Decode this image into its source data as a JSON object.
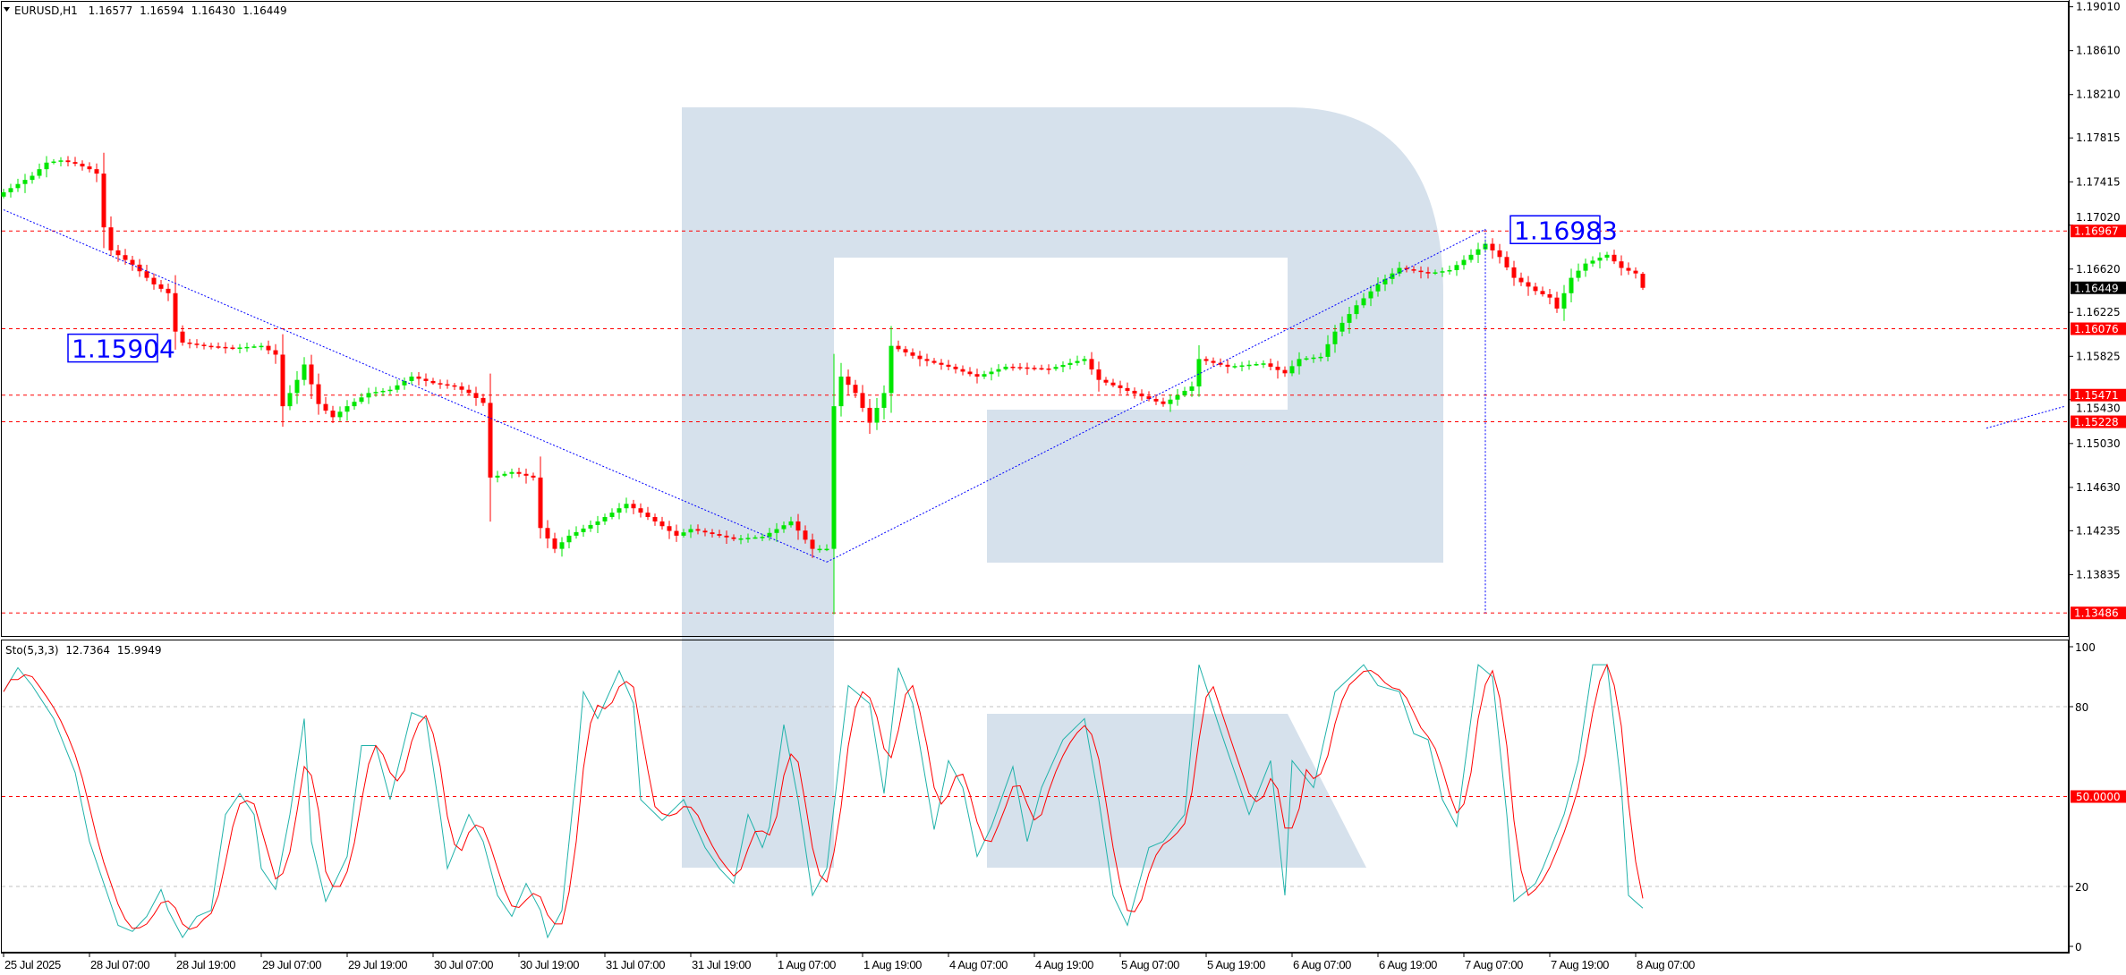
{
  "header": {
    "symbol": "EURUSD,H1",
    "open": "1.16577",
    "high": "1.16594",
    "low": "1.16430",
    "close": "1.16449"
  },
  "colors": {
    "bull": "#00e600",
    "bear": "#ff0000",
    "level_line": "#ff0000",
    "trendline": "#0000ff",
    "current_price_badge": "#000000",
    "watermark": "#d6e1ec",
    "stoch_main": "#20b2aa",
    "stoch_signal": "#ff0000"
  },
  "chart_data": {
    "type": "candlestick",
    "symbol": "EURUSD",
    "timeframe": "H1",
    "ylim": [
      1.1341,
      1.1906
    ],
    "grid": false,
    "y_ticks": [
      "1.19010",
      "1.18610",
      "1.18210",
      "1.17815",
      "1.17415",
      "1.17020",
      "1.16620",
      "1.16225",
      "1.15825",
      "1.15430",
      "1.15030",
      "1.14630",
      "1.14235",
      "1.13835"
    ],
    "x_ticks": [
      "25 Jul 2025",
      "28 Jul 07:00",
      "28 Jul 19:00",
      "29 Jul 07:00",
      "29 Jul 19:00",
      "30 Jul 07:00",
      "30 Jul 19:00",
      "31 Jul 07:00",
      "31 Jul 19:00",
      "1 Aug 07:00",
      "1 Aug 19:00",
      "4 Aug 07:00",
      "4 Aug 19:00",
      "5 Aug 07:00",
      "5 Aug 19:00",
      "6 Aug 07:00",
      "6 Aug 19:00",
      "7 Aug 07:00",
      "7 Aug 19:00",
      "8 Aug 07:00"
    ],
    "current_price": "1.16449",
    "last_bar": {
      "time": "8 Aug 08",
      "open": 1.16577,
      "high": 1.16594,
      "low": 1.1643,
      "close": 1.16449
    },
    "close_points": [
      [
        "25 Jul 19",
        1.1732
      ],
      [
        "25 Jul 23",
        1.1747
      ],
      [
        "28 Jul 01",
        1.1759
      ],
      [
        "28 Jul 03",
        1.1761
      ],
      [
        "28 Jul 05",
        1.1758
      ],
      [
        "28 Jul 07",
        1.1753
      ],
      [
        "28 Jul 08",
        1.1749
      ],
      [
        "28 Jul 09",
        1.17
      ],
      [
        "28 Jul 10",
        1.1679
      ],
      [
        "28 Jul 13",
        1.1666
      ],
      [
        "28 Jul 16",
        1.1648
      ],
      [
        "28 Jul 18",
        1.164
      ],
      [
        "28 Jul 19",
        1.1605
      ],
      [
        "28 Jul 20",
        1.1595
      ],
      [
        "28 Jul 23",
        1.1592
      ],
      [
        "29 Jul 03",
        1.159
      ],
      [
        "29 Jul 07",
        1.1592
      ],
      [
        "29 Jul 09",
        1.1584
      ],
      [
        "29 Jul 10",
        1.1537
      ],
      [
        "29 Jul 12",
        1.1561
      ],
      [
        "29 Jul 13",
        1.1575
      ],
      [
        "29 Jul 15",
        1.1539
      ],
      [
        "29 Jul 17",
        1.1527
      ],
      [
        "29 Jul 19",
        1.1537
      ],
      [
        "29 Jul 22",
        1.1549
      ],
      [
        "30 Jul 01",
        1.1552
      ],
      [
        "30 Jul 04",
        1.1564
      ],
      [
        "30 Jul 07",
        1.1558
      ],
      [
        "30 Jul 10",
        1.1555
      ],
      [
        "30 Jul 12",
        1.1549
      ],
      [
        "30 Jul 14",
        1.154
      ],
      [
        "30 Jul 15",
        1.1472
      ],
      [
        "30 Jul 18",
        1.1477
      ],
      [
        "30 Jul 21",
        1.1472
      ],
      [
        "30 Jul 22",
        1.1426
      ],
      [
        "31 Jul 00",
        1.1407
      ],
      [
        "31 Jul 02",
        1.1419
      ],
      [
        "31 Jul 06",
        1.1432
      ],
      [
        "31 Jul 10",
        1.1448
      ],
      [
        "31 Jul 12",
        1.144
      ],
      [
        "31 Jul 14",
        1.1432
      ],
      [
        "31 Jul 17",
        1.1419
      ],
      [
        "31 Jul 19",
        1.1425
      ],
      [
        "1 Aug 01",
        1.1416
      ],
      [
        "1 Aug 05",
        1.1418
      ],
      [
        "1 Aug 09",
        1.1432
      ],
      [
        "1 Aug 12",
        1.1407
      ],
      [
        "1 Aug 14",
        1.1407
      ],
      [
        "1 Aug 15",
        1.1537
      ],
      [
        "1 Aug 16",
        1.1564
      ],
      [
        "1 Aug 18",
        1.1549
      ],
      [
        "1 Aug 20",
        1.1522
      ],
      [
        "1 Aug 22",
        1.1549
      ],
      [
        "1 Aug 23",
        1.1592
      ],
      [
        "4 Aug 03",
        1.158
      ],
      [
        "4 Aug 07",
        1.1573
      ],
      [
        "4 Aug 11",
        1.1564
      ],
      [
        "4 Aug 15",
        1.1573
      ],
      [
        "4 Aug 21",
        1.1571
      ],
      [
        "5 Aug 02",
        1.158
      ],
      [
        "5 Aug 04",
        1.1561
      ],
      [
        "5 Aug 10",
        1.1546
      ],
      [
        "5 Aug 13",
        1.1539
      ],
      [
        "5 Aug 17",
        1.1555
      ],
      [
        "5 Aug 18",
        1.158
      ],
      [
        "5 Aug 22",
        1.1573
      ],
      [
        "6 Aug 03",
        1.1576
      ],
      [
        "6 Aug 06",
        1.1567
      ],
      [
        "6 Aug 08",
        1.158
      ],
      [
        "6 Aug 11",
        1.1582
      ],
      [
        "6 Aug 13",
        1.1605
      ],
      [
        "6 Aug 16",
        1.1629
      ],
      [
        "6 Aug 19",
        1.1648
      ],
      [
        "6 Aug 22",
        1.1663
      ],
      [
        "7 Aug 02",
        1.1658
      ],
      [
        "7 Aug 05",
        1.1661
      ],
      [
        "7 Aug 08",
        1.1675
      ],
      [
        "7 Aug 10",
        1.1685
      ],
      [
        "7 Aug 12",
        1.1673
      ],
      [
        "7 Aug 14",
        1.1654
      ],
      [
        "7 Aug 17",
        1.1642
      ],
      [
        "7 Aug 19",
        1.1636
      ],
      [
        "7 Aug 20",
        1.1626
      ],
      [
        "7 Aug 22",
        1.1654
      ],
      [
        "8 Aug 00",
        1.1667
      ],
      [
        "8 Aug 03",
        1.1675
      ],
      [
        "8 Aug 05",
        1.1663
      ],
      [
        "8 Aug 07",
        1.1658
      ],
      [
        "8 Aug 08",
        1.16449
      ]
    ],
    "levels": [
      {
        "price": 1.16967,
        "label": "1.16967"
      },
      {
        "price": 1.16076,
        "label": "1.16076"
      },
      {
        "price": 1.15471,
        "label": "1.15471"
      },
      {
        "price": 1.15228,
        "label": "1.15228"
      },
      {
        "price": 1.13486,
        "label": "1.13486"
      }
    ],
    "trendlines": [
      {
        "from": [
          "25 Jul 19",
          1.1716
        ],
        "to": [
          "1 Aug 14",
          1.1395
        ]
      },
      {
        "from": [
          "1 Aug 14",
          1.1395
        ],
        "to": [
          "7 Aug 10",
          1.16983
        ]
      },
      {
        "from": [
          "7 Aug 10",
          1.16983
        ],
        "to": [
          "7 Aug 10",
          1.13486
        ]
      },
      {
        "from": [
          "12 Aug 08",
          1.1517
        ],
        "to": [
          "12 Aug 19",
          1.1537
        ]
      }
    ],
    "price_labels": [
      {
        "text": "1.15904",
        "time": "28 Jul 19",
        "price": 1.15904
      },
      {
        "text": "1.16983",
        "time": "7 Aug 10",
        "price": 1.16983
      }
    ],
    "stochastic": {
      "title": "Sto(5,3,3)",
      "main_value": "12.7364",
      "signal_value": "15.9949",
      "ylim": [
        0,
        100
      ],
      "y_ticks": [
        "100",
        "80",
        "20",
        "0"
      ],
      "level_badge": "50.0000",
      "levels": [
        80,
        50,
        20
      ],
      "main_points": [
        [
          "25 Jul 19",
          85
        ],
        [
          "25 Jul 21",
          93
        ],
        [
          "25 Jul 23",
          87
        ],
        [
          "28 Jul 02",
          76
        ],
        [
          "28 Jul 05",
          58
        ],
        [
          "28 Jul 07",
          35
        ],
        [
          "28 Jul 09",
          21
        ],
        [
          "28 Jul 11",
          7
        ],
        [
          "28 Jul 13",
          5
        ],
        [
          "28 Jul 15",
          10
        ],
        [
          "28 Jul 17",
          19
        ],
        [
          "28 Jul 18",
          12
        ],
        [
          "28 Jul 20",
          3
        ],
        [
          "28 Jul 22",
          10
        ],
        [
          "29 Jul 00",
          12
        ],
        [
          "29 Jul 02",
          44
        ],
        [
          "29 Jul 04",
          51
        ],
        [
          "29 Jul 06",
          44
        ],
        [
          "29 Jul 07",
          26
        ],
        [
          "29 Jul 09",
          19
        ],
        [
          "29 Jul 11",
          44
        ],
        [
          "29 Jul 13",
          76
        ],
        [
          "29 Jul 14",
          35
        ],
        [
          "29 Jul 16",
          15
        ],
        [
          "29 Jul 19",
          30
        ],
        [
          "29 Jul 21",
          67
        ],
        [
          "29 Jul 23",
          67
        ],
        [
          "30 Jul 01",
          49
        ],
        [
          "30 Jul 04",
          78
        ],
        [
          "30 Jul 06",
          76
        ],
        [
          "30 Jul 08",
          44
        ],
        [
          "30 Jul 09",
          26
        ],
        [
          "30 Jul 12",
          44
        ],
        [
          "30 Jul 14",
          35
        ],
        [
          "30 Jul 16",
          17
        ],
        [
          "30 Jul 18",
          10
        ],
        [
          "30 Jul 20",
          21
        ],
        [
          "30 Jul 22",
          12
        ],
        [
          "30 Jul 23",
          3
        ],
        [
          "31 Jul 01",
          12
        ],
        [
          "31 Jul 03",
          58
        ],
        [
          "31 Jul 04",
          85
        ],
        [
          "31 Jul 06",
          76
        ],
        [
          "31 Jul 09",
          92
        ],
        [
          "31 Jul 11",
          81
        ],
        [
          "31 Jul 12",
          49
        ],
        [
          "31 Jul 15",
          42
        ],
        [
          "31 Jul 18",
          49
        ],
        [
          "31 Jul 21",
          33
        ],
        [
          "31 Jul 23",
          26
        ],
        [
          "1 Aug 01",
          21
        ],
        [
          "1 Aug 03",
          44
        ],
        [
          "1 Aug 05",
          33
        ],
        [
          "1 Aug 06",
          40
        ],
        [
          "1 Aug 08",
          74
        ],
        [
          "1 Aug 10",
          49
        ],
        [
          "1 Aug 12",
          17
        ],
        [
          "1 Aug 14",
          26
        ],
        [
          "1 Aug 16",
          67
        ],
        [
          "1 Aug 17",
          87
        ],
        [
          "1 Aug 20",
          81
        ],
        [
          "1 Aug 22",
          51
        ],
        [
          "4 Aug 00",
          93
        ],
        [
          "4 Aug 02",
          81
        ],
        [
          "4 Aug 05",
          39
        ],
        [
          "4 Aug 07",
          62
        ],
        [
          "4 Aug 09",
          53
        ],
        [
          "4 Aug 11",
          30
        ],
        [
          "4 Aug 13",
          40
        ],
        [
          "4 Aug 16",
          60
        ],
        [
          "4 Aug 18",
          35
        ],
        [
          "4 Aug 20",
          53
        ],
        [
          "4 Aug 23",
          69
        ],
        [
          "5 Aug 02",
          76
        ],
        [
          "5 Aug 04",
          49
        ],
        [
          "5 Aug 06",
          17
        ],
        [
          "5 Aug 08",
          7
        ],
        [
          "5 Aug 11",
          33
        ],
        [
          "5 Aug 13",
          35
        ],
        [
          "5 Aug 16",
          44
        ],
        [
          "5 Aug 18",
          94
        ],
        [
          "5 Aug 21",
          72
        ],
        [
          "5 Aug 23",
          58
        ],
        [
          "6 Aug 01",
          44
        ],
        [
          "6 Aug 04",
          62
        ],
        [
          "6 Aug 06",
          17
        ],
        [
          "6 Aug 07",
          62
        ],
        [
          "6 Aug 10",
          53
        ],
        [
          "6 Aug 13",
          85
        ],
        [
          "6 Aug 17",
          94
        ],
        [
          "6 Aug 19",
          87
        ],
        [
          "6 Aug 22",
          85
        ],
        [
          "7 Aug 00",
          71
        ],
        [
          "7 Aug 02",
          69
        ],
        [
          "7 Aug 04",
          49
        ],
        [
          "7 Aug 06",
          40
        ],
        [
          "7 Aug 09",
          94
        ],
        [
          "7 Aug 11",
          90
        ],
        [
          "7 Aug 13",
          44
        ],
        [
          "7 Aug 14",
          15
        ],
        [
          "7 Aug 17",
          21
        ],
        [
          "7 Aug 18",
          26
        ],
        [
          "7 Aug 21",
          44
        ],
        [
          "7 Aug 23",
          62
        ],
        [
          "8 Aug 01",
          94
        ],
        [
          "8 Aug 03",
          94
        ],
        [
          "8 Aug 05",
          53
        ],
        [
          "8 Aug 06",
          17
        ],
        [
          "8 Aug 08",
          12.7364
        ]
      ]
    }
  }
}
